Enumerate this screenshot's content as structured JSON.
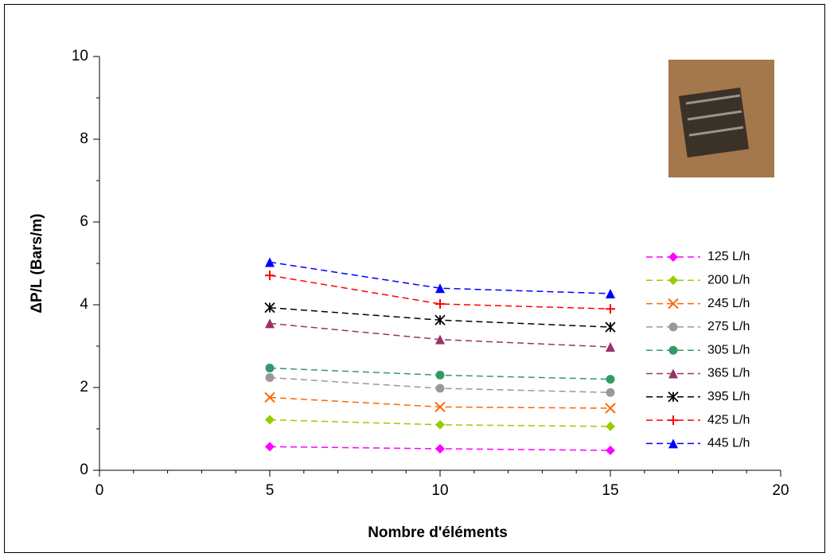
{
  "chart_data": {
    "type": "line",
    "x_label": "Nombre d'éléments",
    "y_label": "ΔP/L (Bars/m)",
    "x": [
      5,
      10,
      15
    ],
    "xlim": [
      0,
      20
    ],
    "xticks": [
      0,
      5,
      10,
      15,
      20
    ],
    "x_minor_step": 1,
    "ylim": [
      0,
      10
    ],
    "yticks": [
      0,
      2,
      4,
      6,
      8,
      10
    ],
    "y_minor_step": 1,
    "series": [
      {
        "name": "125 L/h",
        "color": "#ff00ff",
        "marker": "diamond",
        "values": [
          0.57,
          0.52,
          0.48
        ]
      },
      {
        "name": "200 L/h",
        "color": "#99cc00",
        "marker": "diamond",
        "values": [
          1.22,
          1.1,
          1.06
        ]
      },
      {
        "name": "245 L/h",
        "color": "#ff6600",
        "marker": "x",
        "values": [
          1.76,
          1.53,
          1.5
        ]
      },
      {
        "name": "275 L/h",
        "color": "#999999",
        "marker": "circle",
        "values": [
          2.24,
          1.98,
          1.88
        ]
      },
      {
        "name": "305 L/h",
        "color": "#339966",
        "marker": "circle",
        "values": [
          2.47,
          2.3,
          2.2
        ]
      },
      {
        "name": "365 L/h",
        "color": "#993366",
        "marker": "triangle",
        "values": [
          3.55,
          3.16,
          2.98
        ]
      },
      {
        "name": "395 L/h",
        "color": "#000000",
        "marker": "asterisk",
        "values": [
          3.93,
          3.63,
          3.46
        ]
      },
      {
        "name": "425 L/h",
        "color": "#ff0000",
        "marker": "plus",
        "values": [
          4.71,
          4.02,
          3.9
        ]
      },
      {
        "name": "445 L/h",
        "color": "#0000ff",
        "marker": "triangle",
        "values": [
          5.03,
          4.4,
          4.27
        ]
      }
    ]
  }
}
